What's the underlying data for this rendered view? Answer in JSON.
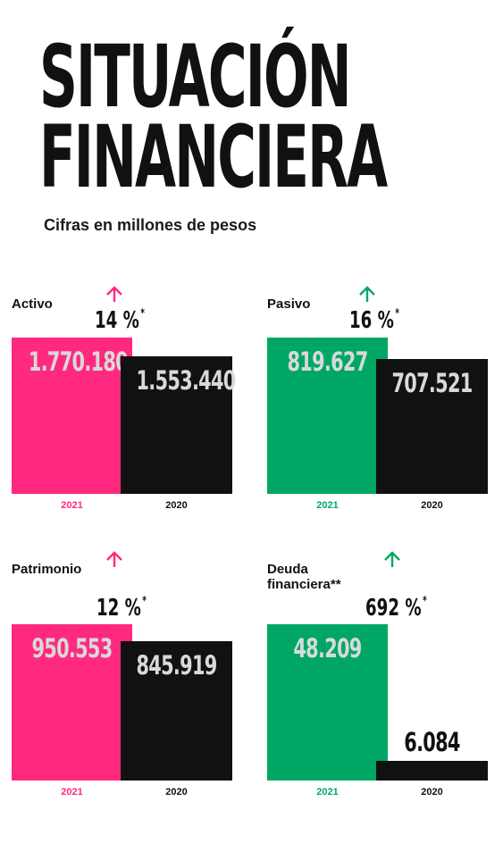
{
  "header": {
    "title_line1": "SITUACIÓN",
    "title_line2": "FINANCIERA",
    "subtitle": "Cifras en millones de pesos"
  },
  "colors": {
    "pink": "#ff2a7f",
    "green": "#00a764",
    "black": "#111111",
    "light_text": "#d9d9d9"
  },
  "chart_data": [
    {
      "type": "bar",
      "title": "Activo",
      "categories": [
        "2021",
        "2020"
      ],
      "values": [
        1770180,
        1553440
      ],
      "value_labels": [
        "1.770.180",
        "1.553.440"
      ],
      "change": "14 %",
      "change_mark": "*",
      "trend": "up",
      "accent": "pink"
    },
    {
      "type": "bar",
      "title": "Pasivo",
      "categories": [
        "2021",
        "2020"
      ],
      "values": [
        819627,
        707521
      ],
      "value_labels": [
        "819.627",
        "707.521"
      ],
      "change": "16 %",
      "change_mark": "*",
      "trend": "up",
      "accent": "green"
    },
    {
      "type": "bar",
      "title": "Patrimonio",
      "categories": [
        "2021",
        "2020"
      ],
      "values": [
        950553,
        845919
      ],
      "value_labels": [
        "950.553",
        "845.919"
      ],
      "change": "12 %",
      "change_mark": "*",
      "trend": "up",
      "accent": "pink"
    },
    {
      "type": "bar",
      "title": "Deuda financiera**",
      "categories": [
        "2021",
        "2020"
      ],
      "values": [
        48209,
        6084
      ],
      "value_labels": [
        "48.209",
        "6.084"
      ],
      "change": "692 %",
      "change_mark": "*",
      "trend": "up",
      "accent": "green"
    }
  ]
}
